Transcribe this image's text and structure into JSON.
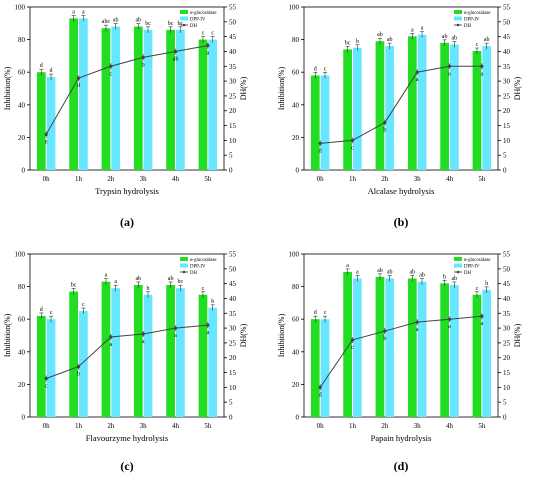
{
  "chart_data": [
    {
      "type": "bar",
      "panel_label": "(a)",
      "xlabel": "Trypsin hydrolysis",
      "ylabel": "Inhibition(%)",
      "y2label": "DH(%)",
      "categories": [
        "0h",
        "1h",
        "2h",
        "3h",
        "4h",
        "5h"
      ],
      "ylim": [
        0,
        100
      ],
      "y2lim": [
        0,
        55
      ],
      "yticks": [
        "0",
        "20",
        "40",
        "60",
        "80",
        "100"
      ],
      "y2ticks": [
        "0",
        "5",
        "10",
        "15",
        "20",
        "25",
        "30",
        "35",
        "40",
        "45",
        "50",
        "55"
      ],
      "legend_position": "top-right",
      "series": [
        {
          "name": "α-glucosidase",
          "type": "bar",
          "color": "#22dd22",
          "values": [
            60,
            93,
            87,
            88,
            86,
            80
          ],
          "letters": [
            "d",
            "a",
            "abc",
            "ab",
            "bc",
            "c"
          ]
        },
        {
          "name": "DPP-IV",
          "type": "bar",
          "color": "#66e6ff",
          "values": [
            57,
            93,
            88,
            86,
            86,
            80
          ],
          "letters": [
            "d",
            "a",
            "ab",
            "bc",
            "bc",
            "c"
          ]
        },
        {
          "name": "DH",
          "type": "line",
          "color": "#444444",
          "values": [
            12,
            31,
            35,
            38,
            40,
            42
          ],
          "letters": [
            "e",
            "d",
            "c",
            "b",
            "ab",
            "a"
          ]
        }
      ]
    },
    {
      "type": "bar",
      "panel_label": "(b)",
      "xlabel": "Alcalase hydrolysis",
      "ylabel": "Inhibition(%)",
      "y2label": "DH(%)",
      "categories": [
        "0h",
        "1h",
        "2h",
        "3h",
        "4h",
        "5h"
      ],
      "ylim": [
        0,
        100
      ],
      "y2lim": [
        0,
        55
      ],
      "yticks": [
        "0",
        "20",
        "40",
        "60",
        "80",
        "100"
      ],
      "y2ticks": [
        "0",
        "5",
        "10",
        "15",
        "20",
        "25",
        "30",
        "35",
        "40",
        "45",
        "50",
        "55"
      ],
      "legend_position": "top-right",
      "series": [
        {
          "name": "α-glucosidase",
          "type": "bar",
          "color": "#22dd22",
          "values": [
            58,
            74,
            79,
            82,
            78,
            73
          ],
          "letters": [
            "d",
            "bc",
            "ab",
            "a",
            "ab",
            "c"
          ]
        },
        {
          "name": "DPP-IV",
          "type": "bar",
          "color": "#66e6ff",
          "values": [
            58,
            75,
            76,
            83,
            77,
            76
          ],
          "letters": [
            "c",
            "b",
            "ab",
            "a",
            "ab",
            "ab"
          ]
        },
        {
          "name": "DH",
          "type": "line",
          "color": "#444444",
          "values": [
            9,
            10,
            16,
            33,
            35,
            35
          ],
          "letters": [
            "d",
            "c",
            "b",
            "a",
            "a",
            "a"
          ]
        }
      ]
    },
    {
      "type": "bar",
      "panel_label": "(c)",
      "xlabel": "Flavourzyme hydrolysis",
      "ylabel": "Inhibition(%)",
      "y2label": "DH(%)",
      "categories": [
        "0h",
        "1h",
        "2h",
        "3h",
        "4h",
        "5h"
      ],
      "ylim": [
        0,
        100
      ],
      "y2lim": [
        0,
        55
      ],
      "yticks": [
        "0",
        "20",
        "40",
        "60",
        "80",
        "100"
      ],
      "y2ticks": [
        "0",
        "5",
        "10",
        "15",
        "20",
        "25",
        "30",
        "35",
        "40",
        "45",
        "50",
        "55"
      ],
      "legend_position": "top-right",
      "series": [
        {
          "name": "α-glucosidase",
          "type": "bar",
          "color": "#22dd22",
          "values": [
            62,
            77,
            83,
            81,
            81,
            75
          ],
          "letters": [
            "d",
            "bc",
            "a",
            "ab",
            "ab",
            "c"
          ]
        },
        {
          "name": "DPP-IV",
          "type": "bar",
          "color": "#66e6ff",
          "values": [
            60,
            65,
            79,
            75,
            79,
            67
          ],
          "letters": [
            "c",
            "c",
            "a",
            "b",
            "bc",
            "b"
          ]
        },
        {
          "name": "DH",
          "type": "line",
          "color": "#444444",
          "values": [
            13,
            17,
            27,
            28,
            30,
            31
          ],
          "letters": [
            "c",
            "b",
            "a",
            "a",
            "a",
            "a"
          ]
        }
      ]
    },
    {
      "type": "bar",
      "panel_label": "(d)",
      "xlabel": "Papain  hydrolysis",
      "ylabel": "Inhibition(%)",
      "y2label": "DH(%)",
      "categories": [
        "0h",
        "1h",
        "2h",
        "3h",
        "4h",
        "5h"
      ],
      "ylim": [
        0,
        100
      ],
      "y2lim": [
        0,
        55
      ],
      "yticks": [
        "0",
        "20",
        "40",
        "60",
        "80",
        "100"
      ],
      "y2ticks": [
        "0",
        "5",
        "10",
        "15",
        "20",
        "25",
        "30",
        "35",
        "40",
        "45",
        "50",
        "55"
      ],
      "legend_position": "top-right",
      "series": [
        {
          "name": "α-glucosidase",
          "type": "bar",
          "color": "#22dd22",
          "values": [
            60,
            89,
            86,
            85,
            82,
            75
          ],
          "letters": [
            "d",
            "a",
            "ab",
            "ab",
            "b",
            "c"
          ]
        },
        {
          "name": "DPP-IV",
          "type": "bar",
          "color": "#66e6ff",
          "values": [
            60,
            85,
            85,
            83,
            81,
            78
          ],
          "letters": [
            "c",
            "a",
            "ab",
            "ab",
            "ab",
            "b"
          ]
        },
        {
          "name": "DH",
          "type": "line",
          "color": "#444444",
          "values": [
            10,
            26,
            29,
            32,
            33,
            34
          ],
          "letters": [
            "d",
            "c",
            "b",
            "a",
            "a",
            "a"
          ]
        }
      ]
    }
  ]
}
